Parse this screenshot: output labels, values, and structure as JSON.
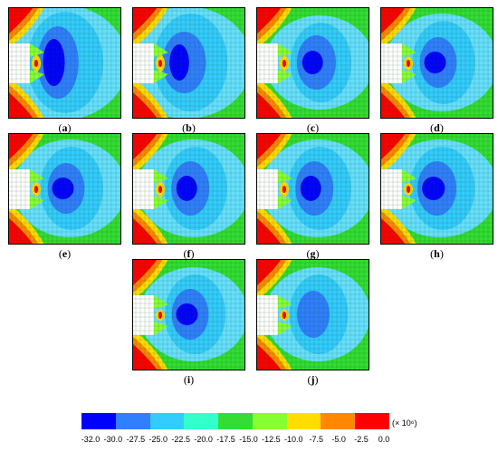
{
  "panels": [
    {
      "id": "a",
      "label": "a",
      "variant": 0
    },
    {
      "id": "b",
      "label": "b",
      "variant": 1
    },
    {
      "id": "c",
      "label": "c",
      "variant": 2
    },
    {
      "id": "d",
      "label": "d",
      "variant": 3
    },
    {
      "id": "e",
      "label": "e",
      "variant": 3
    },
    {
      "id": "f",
      "label": "f",
      "variant": 4
    },
    {
      "id": "g",
      "label": "g",
      "variant": 4
    },
    {
      "id": "h",
      "label": "h",
      "variant": 5
    },
    {
      "id": "i",
      "label": "i",
      "variant": 6
    },
    {
      "id": "j",
      "label": "j",
      "variant": 7
    }
  ],
  "colorbar": {
    "colors": [
      "#0000ff",
      "#2f7fff",
      "#33ccff",
      "#33ffcc",
      "#33dd33",
      "#88ff33",
      "#ffdd00",
      "#ff8800",
      "#ff0000"
    ],
    "tick_labels": [
      "-32.0",
      "-30.0",
      "-27.5",
      "-25.0",
      "-22.5",
      "-20.0",
      "-17.5",
      "-15.0",
      "-12.5",
      "-10.0",
      "-7.5",
      "-5.0",
      "-2.5",
      "0.0"
    ],
    "unit": "(× 10⁶)"
  }
}
